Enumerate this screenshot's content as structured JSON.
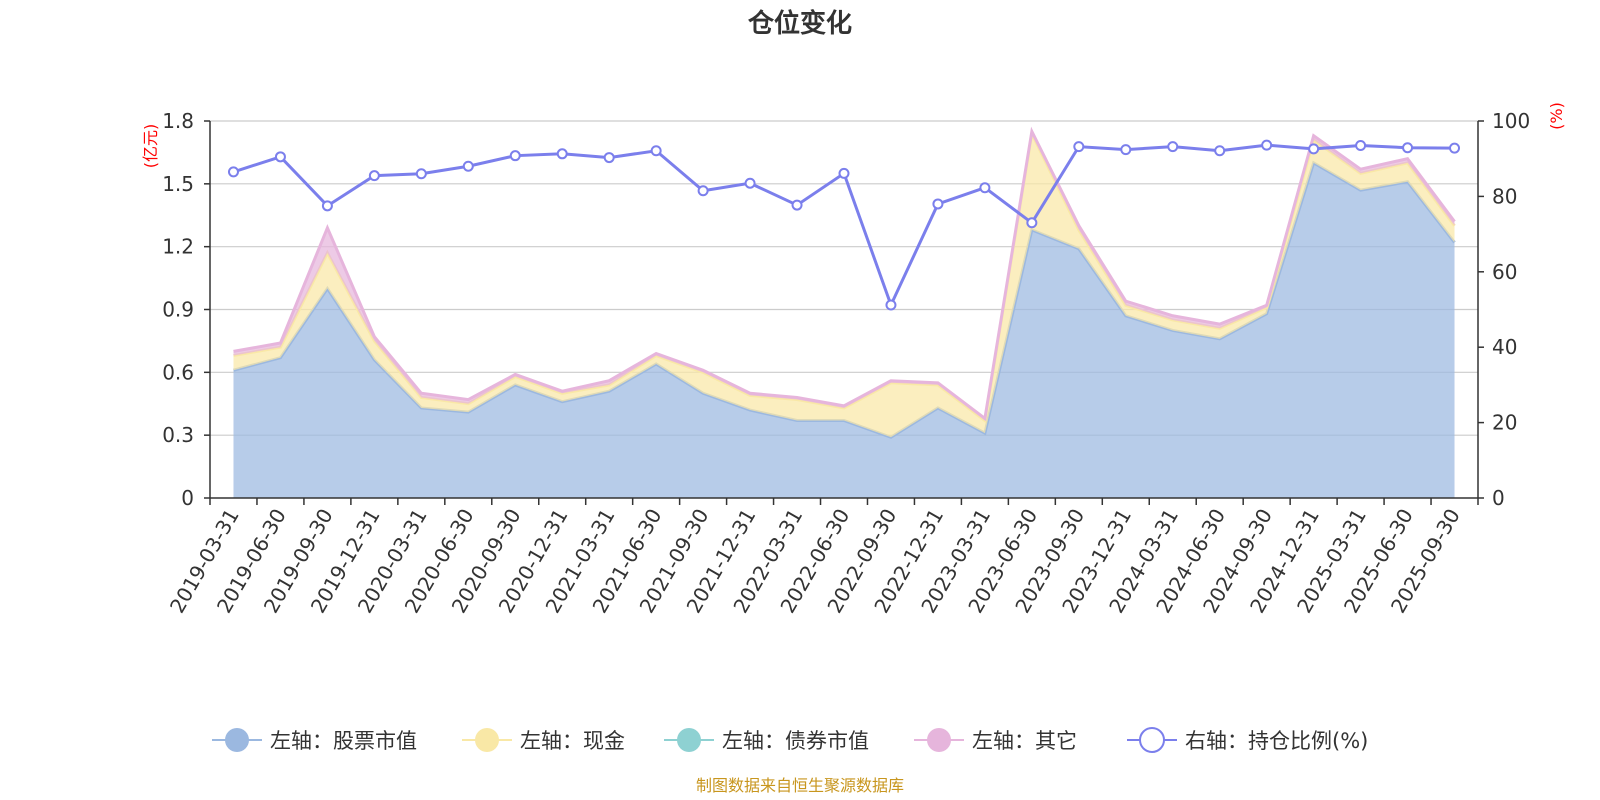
{
  "chart_data": {
    "type": "area",
    "title": "仓位变化",
    "left_axis_unit": "(亿元)",
    "right_axis_unit": "(%)",
    "left_ticks": [
      "0",
      "0.3",
      "0.6",
      "0.9",
      "1.2",
      "1.5",
      "1.8"
    ],
    "right_ticks": [
      "0",
      "20",
      "40",
      "60",
      "80",
      "100"
    ],
    "ylim_left": [
      0,
      1.8
    ],
    "ylim_right": [
      0,
      100
    ],
    "categories": [
      "2019-03-31",
      "2019-06-30",
      "2019-09-30",
      "2019-12-31",
      "2020-03-31",
      "2020-06-30",
      "2020-09-30",
      "2020-12-31",
      "2021-03-31",
      "2021-06-30",
      "2021-09-30",
      "2021-12-31",
      "2022-03-31",
      "2022-06-30",
      "2022-09-30",
      "2022-12-31",
      "2023-03-31",
      "2023-06-30",
      "2023-09-30",
      "2023-12-31",
      "2024-03-31",
      "2024-06-30",
      "2024-09-30",
      "2024-12-31",
      "2025-03-31",
      "2025-06-30",
      "2025-09-30"
    ],
    "grid": true,
    "legend_position": "bottom",
    "series": [
      {
        "name": "左轴：股票市值",
        "axis": "left",
        "type": "area",
        "color": "#9bb8e0",
        "values": [
          0.61,
          0.67,
          1.0,
          0.66,
          0.43,
          0.41,
          0.54,
          0.46,
          0.51,
          0.64,
          0.5,
          0.42,
          0.37,
          0.37,
          0.29,
          0.43,
          0.31,
          1.28,
          1.19,
          0.87,
          0.8,
          0.76,
          0.88,
          1.6,
          1.47,
          1.51,
          1.22
        ]
      },
      {
        "name": "左轴：现金",
        "axis": "left",
        "type": "area",
        "color": "#f9e8a6",
        "values": [
          0.07,
          0.05,
          0.17,
          0.09,
          0.05,
          0.04,
          0.04,
          0.04,
          0.03,
          0.04,
          0.1,
          0.07,
          0.1,
          0.06,
          0.26,
          0.11,
          0.06,
          0.46,
          0.09,
          0.05,
          0.05,
          0.05,
          0.03,
          0.11,
          0.08,
          0.09,
          0.08
        ]
      },
      {
        "name": "左轴：债券市值",
        "axis": "left",
        "type": "area",
        "color": "#8ed1d2",
        "values": [
          0,
          0,
          0,
          0,
          0,
          0,
          0,
          0,
          0,
          0,
          0,
          0,
          0,
          0,
          0,
          0,
          0,
          0,
          0,
          0,
          0,
          0,
          0,
          0,
          0,
          0,
          0
        ]
      },
      {
        "name": "左轴：其它",
        "axis": "left",
        "type": "area",
        "color": "#e6b5dc",
        "values": [
          0.02,
          0.02,
          0.12,
          0.02,
          0.02,
          0.02,
          0.01,
          0.01,
          0.02,
          0.01,
          0.01,
          0.01,
          0.01,
          0.01,
          0.01,
          0.01,
          0.01,
          0.01,
          0.02,
          0.02,
          0.02,
          0.02,
          0.01,
          0.02,
          0.02,
          0.02,
          0.02
        ]
      },
      {
        "name": "右轴：持仓比例(%)",
        "axis": "right",
        "type": "line",
        "color": "#7b7fec",
        "values": [
          86.5,
          90.5,
          77.5,
          85.5,
          86,
          88,
          90.8,
          91.3,
          90.3,
          92.1,
          81.5,
          83.5,
          77.7,
          86.1,
          51.2,
          78,
          82.3,
          73,
          93.2,
          92.4,
          93.2,
          92.1,
          93.6,
          92.6,
          93.5,
          92.9,
          92.8
        ]
      }
    ]
  },
  "source_note": "制图数据来自恒生聚源数据库"
}
